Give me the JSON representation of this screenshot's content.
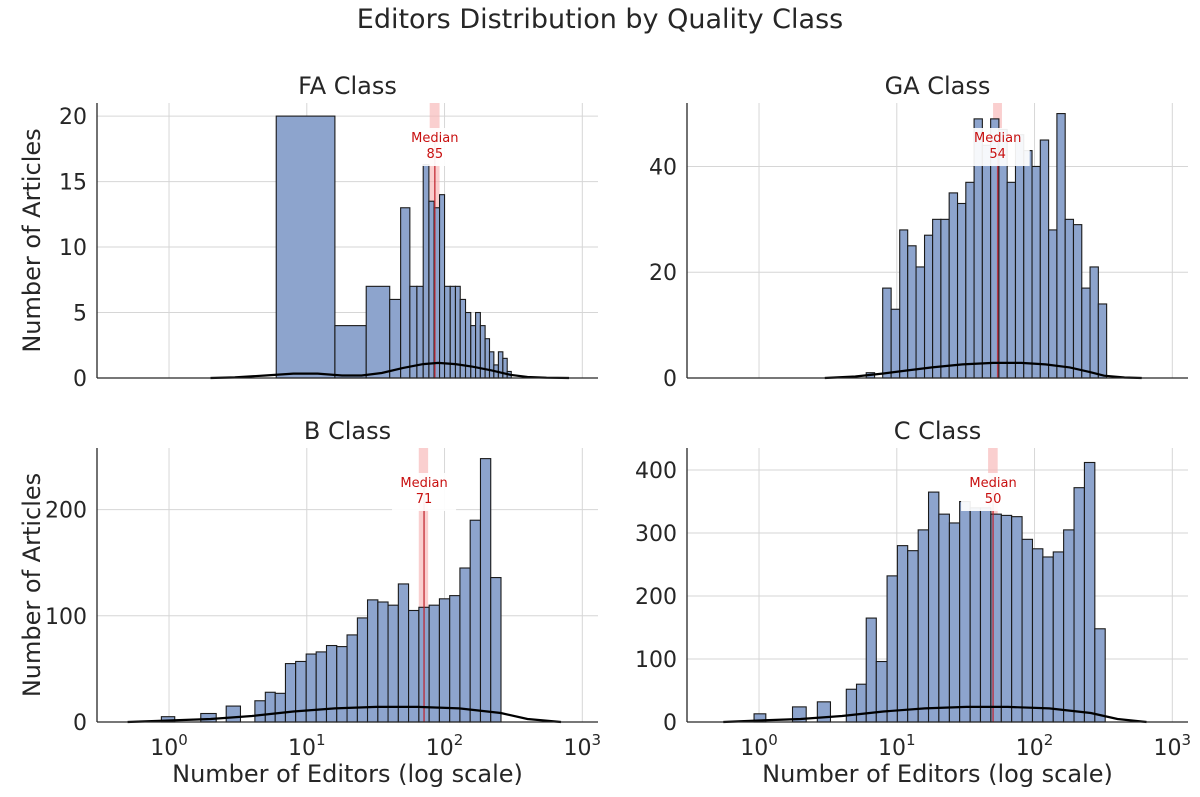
{
  "figure": {
    "title": "Editors Distribution by Quality Class",
    "colors": {
      "bar_fill": "#8DA4CD",
      "bar_edge": "#1A1A1A",
      "kde": "#000000",
      "median_band": "#F7B5B5",
      "median_line": "#C0202A",
      "median_text": "#C81010",
      "grid": "#D6D6D6",
      "axis": "#262626"
    }
  },
  "chart_data": [
    {
      "type": "bar",
      "title": "FA Class",
      "ylabel": "Number of Articles",
      "xlabel": "",
      "xscale": "log",
      "xlim": [
        0.3,
        1300
      ],
      "ylim": [
        0,
        21
      ],
      "yticks": [
        0,
        5,
        10,
        15,
        20
      ],
      "xticks": [
        1,
        10,
        100,
        1000
      ],
      "grid": true,
      "show_x_ticklabels": false,
      "median": {
        "value": 85,
        "label": "Median",
        "value_label": "85",
        "band": [
          78,
          92
        ]
      },
      "bins": [
        {
          "x0": 6,
          "x1": 16,
          "count": 20
        },
        {
          "x0": 16,
          "x1": 27,
          "count": 4
        },
        {
          "x0": 27,
          "x1": 40,
          "count": 7
        },
        {
          "x0": 40,
          "x1": 48,
          "count": 6
        },
        {
          "x0": 48,
          "x1": 56,
          "count": 13
        },
        {
          "x0": 56,
          "x1": 63,
          "count": 7
        },
        {
          "x0": 63,
          "x1": 70,
          "count": 7
        },
        {
          "x0": 70,
          "x1": 77,
          "count": 16.3
        },
        {
          "x0": 77,
          "x1": 84,
          "count": 13.5
        },
        {
          "x0": 84,
          "x1": 92,
          "count": 13
        },
        {
          "x0": 92,
          "x1": 100,
          "count": 14
        },
        {
          "x0": 100,
          "x1": 110,
          "count": 7
        },
        {
          "x0": 110,
          "x1": 120,
          "count": 7
        },
        {
          "x0": 120,
          "x1": 130,
          "count": 7
        },
        {
          "x0": 130,
          "x1": 142,
          "count": 6
        },
        {
          "x0": 142,
          "x1": 155,
          "count": 5
        },
        {
          "x0": 155,
          "x1": 168,
          "count": 4
        },
        {
          "x0": 168,
          "x1": 182,
          "count": 5
        },
        {
          "x0": 182,
          "x1": 197,
          "count": 4
        },
        {
          "x0": 197,
          "x1": 212,
          "count": 3
        },
        {
          "x0": 212,
          "x1": 228,
          "count": 2
        },
        {
          "x0": 228,
          "x1": 246,
          "count": 1
        },
        {
          "x0": 246,
          "x1": 265,
          "count": 2
        },
        {
          "x0": 265,
          "x1": 285,
          "count": 1.5
        },
        {
          "x0": 285,
          "x1": 305,
          "count": 0.5
        }
      ],
      "kde": {
        "x": [
          2,
          3,
          5,
          8,
          12,
          18,
          25,
          35,
          50,
          70,
          90,
          120,
          160,
          220,
          300,
          400,
          550,
          800
        ],
        "y": [
          0,
          0.05,
          0.2,
          0.35,
          0.35,
          0.2,
          0.2,
          0.4,
          0.8,
          1.1,
          1.2,
          1.1,
          0.9,
          0.6,
          0.25,
          0.08,
          0.02,
          0
        ]
      }
    },
    {
      "type": "bar",
      "title": "GA Class",
      "ylabel": "",
      "xlabel": "",
      "xscale": "log",
      "xlim": [
        0.3,
        1300
      ],
      "ylim": [
        0,
        52
      ],
      "yticks": [
        0,
        20,
        40
      ],
      "xticks": [
        1,
        10,
        100,
        1000
      ],
      "grid": true,
      "show_x_ticklabels": false,
      "median": {
        "value": 54,
        "label": "Median",
        "value_label": "54",
        "band": [
          50,
          58
        ]
      },
      "bins": [
        {
          "x0": 6.0,
          "x1": 6.9,
          "count": 1
        },
        {
          "x0": 6.9,
          "x1": 7.9,
          "count": 0
        },
        {
          "x0": 7.9,
          "x1": 9.1,
          "count": 17
        },
        {
          "x0": 9.1,
          "x1": 10.5,
          "count": 13
        },
        {
          "x0": 10.5,
          "x1": 12.0,
          "count": 28
        },
        {
          "x0": 12.0,
          "x1": 13.8,
          "count": 25
        },
        {
          "x0": 13.8,
          "x1": 15.9,
          "count": 21
        },
        {
          "x0": 15.9,
          "x1": 18.2,
          "count": 27
        },
        {
          "x0": 18.2,
          "x1": 20.9,
          "count": 30
        },
        {
          "x0": 20.9,
          "x1": 24.0,
          "count": 30
        },
        {
          "x0": 24.0,
          "x1": 27.6,
          "count": 35
        },
        {
          "x0": 27.6,
          "x1": 31.7,
          "count": 33
        },
        {
          "x0": 31.7,
          "x1": 36.4,
          "count": 37
        },
        {
          "x0": 36.4,
          "x1": 41.8,
          "count": 49
        },
        {
          "x0": 41.8,
          "x1": 48.0,
          "count": 44
        },
        {
          "x0": 48.0,
          "x1": 55.1,
          "count": 49
        },
        {
          "x0": 55.1,
          "x1": 63.3,
          "count": 47
        },
        {
          "x0": 63.3,
          "x1": 72.7,
          "count": 37
        },
        {
          "x0": 72.7,
          "x1": 83.5,
          "count": 46
        },
        {
          "x0": 83.5,
          "x1": 95.9,
          "count": 43
        },
        {
          "x0": 95.9,
          "x1": 110.1,
          "count": 40
        },
        {
          "x0": 110.1,
          "x1": 126.5,
          "count": 45
        },
        {
          "x0": 126.5,
          "x1": 145.3,
          "count": 28
        },
        {
          "x0": 145.3,
          "x1": 166.9,
          "count": 50
        },
        {
          "x0": 166.9,
          "x1": 191.7,
          "count": 30
        },
        {
          "x0": 191.7,
          "x1": 220.2,
          "count": 29
        },
        {
          "x0": 220.2,
          "x1": 252.9,
          "count": 17
        },
        {
          "x0": 252.9,
          "x1": 290.5,
          "count": 21
        },
        {
          "x0": 290.5,
          "x1": 333.7,
          "count": 14
        }
      ],
      "kde": {
        "x": [
          3,
          5,
          8,
          12,
          18,
          30,
          50,
          80,
          120,
          180,
          250,
          320,
          450,
          600
        ],
        "y": [
          0,
          0.1,
          0.3,
          0.5,
          0.7,
          0.9,
          1.0,
          1.0,
          0.9,
          0.7,
          0.4,
          0.15,
          0.03,
          0
        ]
      }
    },
    {
      "type": "bar",
      "title": "B Class",
      "ylabel": "Number of Articles",
      "xlabel": "Number of Editors (log scale)",
      "xscale": "log",
      "xlim": [
        0.3,
        1300
      ],
      "ylim": [
        0,
        258
      ],
      "yticks": [
        0,
        100,
        200
      ],
      "xticks": [
        1,
        10,
        100,
        1000
      ],
      "xticklabels": [
        "0",
        "1",
        "2",
        "3"
      ],
      "grid": true,
      "show_x_ticklabels": true,
      "median": {
        "value": 71,
        "label": "Median",
        "value_label": "71",
        "band": [
          65,
          76
        ]
      },
      "bins": [
        {
          "x0": 0.45,
          "x1": 0.88,
          "count": 0
        },
        {
          "x0": 0.88,
          "x1": 1.1,
          "count": 5
        },
        {
          "x0": 1.1,
          "x1": 1.7,
          "count": 0
        },
        {
          "x0": 1.7,
          "x1": 2.2,
          "count": 8
        },
        {
          "x0": 2.2,
          "x1": 2.6,
          "count": 0
        },
        {
          "x0": 2.6,
          "x1": 3.3,
          "count": 15
        },
        {
          "x0": 3.3,
          "x1": 4.2,
          "count": 0
        },
        {
          "x0": 4.2,
          "x1": 5.0,
          "count": 20
        },
        {
          "x0": 5.0,
          "x1": 5.9,
          "count": 28
        },
        {
          "x0": 5.9,
          "x1": 7.0,
          "count": 27
        },
        {
          "x0": 7.0,
          "x1": 8.3,
          "count": 55
        },
        {
          "x0": 8.3,
          "x1": 9.9,
          "count": 57
        },
        {
          "x0": 9.9,
          "x1": 11.7,
          "count": 64
        },
        {
          "x0": 11.7,
          "x1": 13.9,
          "count": 66
        },
        {
          "x0": 13.9,
          "x1": 16.5,
          "count": 72
        },
        {
          "x0": 16.5,
          "x1": 19.6,
          "count": 71
        },
        {
          "x0": 19.6,
          "x1": 23.3,
          "count": 82
        },
        {
          "x0": 23.3,
          "x1": 27.6,
          "count": 98
        },
        {
          "x0": 27.6,
          "x1": 32.8,
          "count": 115
        },
        {
          "x0": 32.8,
          "x1": 38.9,
          "count": 113
        },
        {
          "x0": 38.9,
          "x1": 46.2,
          "count": 110
        },
        {
          "x0": 46.2,
          "x1": 54.8,
          "count": 130
        },
        {
          "x0": 54.8,
          "x1": 65.1,
          "count": 105
        },
        {
          "x0": 65.1,
          "x1": 77.3,
          "count": 108
        },
        {
          "x0": 77.3,
          "x1": 91.8,
          "count": 110
        },
        {
          "x0": 91.8,
          "x1": 109.0,
          "count": 116
        },
        {
          "x0": 109.0,
          "x1": 129.3,
          "count": 119
        },
        {
          "x0": 129.3,
          "x1": 153.5,
          "count": 145
        },
        {
          "x0": 153.5,
          "x1": 182.3,
          "count": 190
        },
        {
          "x0": 182.3,
          "x1": 216.4,
          "count": 248
        },
        {
          "x0": 216.4,
          "x1": 256.9,
          "count": 136
        }
      ],
      "kde": {
        "x": [
          0.5,
          1,
          2,
          4,
          8,
          16,
          32,
          64,
          128,
          256,
          400,
          700
        ],
        "y": [
          0,
          0.1,
          0.2,
          0.4,
          0.7,
          0.9,
          1.0,
          1.0,
          0.9,
          0.6,
          0.2,
          0
        ]
      }
    },
    {
      "type": "bar",
      "title": "C Class",
      "ylabel": "",
      "xlabel": "Number of Editors (log scale)",
      "xscale": "log",
      "xlim": [
        0.3,
        1300
      ],
      "ylim": [
        0,
        435
      ],
      "yticks": [
        0,
        100,
        200,
        300,
        400
      ],
      "xticks": [
        1,
        10,
        100,
        1000
      ],
      "xticklabels": [
        "0",
        "1",
        "2",
        "3"
      ],
      "grid": true,
      "show_x_ticklabels": true,
      "median": {
        "value": 50,
        "label": "Median",
        "value_label": "50",
        "band": [
          46,
          54
        ]
      },
      "bins": [
        {
          "x0": 0.55,
          "x1": 0.92,
          "count": 0
        },
        {
          "x0": 0.92,
          "x1": 1.12,
          "count": 13
        },
        {
          "x0": 1.12,
          "x1": 1.75,
          "count": 0
        },
        {
          "x0": 1.75,
          "x1": 2.2,
          "count": 24
        },
        {
          "x0": 2.2,
          "x1": 2.65,
          "count": 0
        },
        {
          "x0": 2.65,
          "x1": 3.3,
          "count": 32
        },
        {
          "x0": 3.3,
          "x1": 4.3,
          "count": 0
        },
        {
          "x0": 4.3,
          "x1": 5.1,
          "count": 52
        },
        {
          "x0": 5.1,
          "x1": 6.0,
          "count": 60
        },
        {
          "x0": 6.0,
          "x1": 7.1,
          "count": 165
        },
        {
          "x0": 7.1,
          "x1": 8.5,
          "count": 96
        },
        {
          "x0": 8.5,
          "x1": 10.1,
          "count": 232
        },
        {
          "x0": 10.1,
          "x1": 12.0,
          "count": 280
        },
        {
          "x0": 12.0,
          "x1": 14.3,
          "count": 272
        },
        {
          "x0": 14.3,
          "x1": 17.0,
          "count": 305
        },
        {
          "x0": 17.0,
          "x1": 20.2,
          "count": 365
        },
        {
          "x0": 20.2,
          "x1": 24.1,
          "count": 330
        },
        {
          "x0": 24.1,
          "x1": 28.6,
          "count": 316
        },
        {
          "x0": 28.6,
          "x1": 34.1,
          "count": 350
        },
        {
          "x0": 34.1,
          "x1": 40.5,
          "count": 340
        },
        {
          "x0": 40.5,
          "x1": 48.2,
          "count": 340
        },
        {
          "x0": 48.2,
          "x1": 57.4,
          "count": 330
        },
        {
          "x0": 57.4,
          "x1": 68.2,
          "count": 328
        },
        {
          "x0": 68.2,
          "x1": 81.2,
          "count": 326
        },
        {
          "x0": 81.2,
          "x1": 96.6,
          "count": 290
        },
        {
          "x0": 96.6,
          "x1": 114.9,
          "count": 275
        },
        {
          "x0": 114.9,
          "x1": 136.7,
          "count": 262
        },
        {
          "x0": 136.7,
          "x1": 162.6,
          "count": 270
        },
        {
          "x0": 162.6,
          "x1": 193.5,
          "count": 305
        },
        {
          "x0": 193.5,
          "x1": 230.2,
          "count": 372
        },
        {
          "x0": 230.2,
          "x1": 273.9,
          "count": 412
        },
        {
          "x0": 273.9,
          "x1": 325.8,
          "count": 148
        }
      ],
      "kde": {
        "x": [
          0.55,
          1,
          2,
          4,
          8,
          16,
          32,
          64,
          128,
          256,
          400,
          650
        ],
        "y": [
          0,
          0.1,
          0.2,
          0.4,
          0.7,
          0.9,
          1.0,
          1.0,
          0.9,
          0.6,
          0.2,
          0
        ]
      }
    }
  ]
}
